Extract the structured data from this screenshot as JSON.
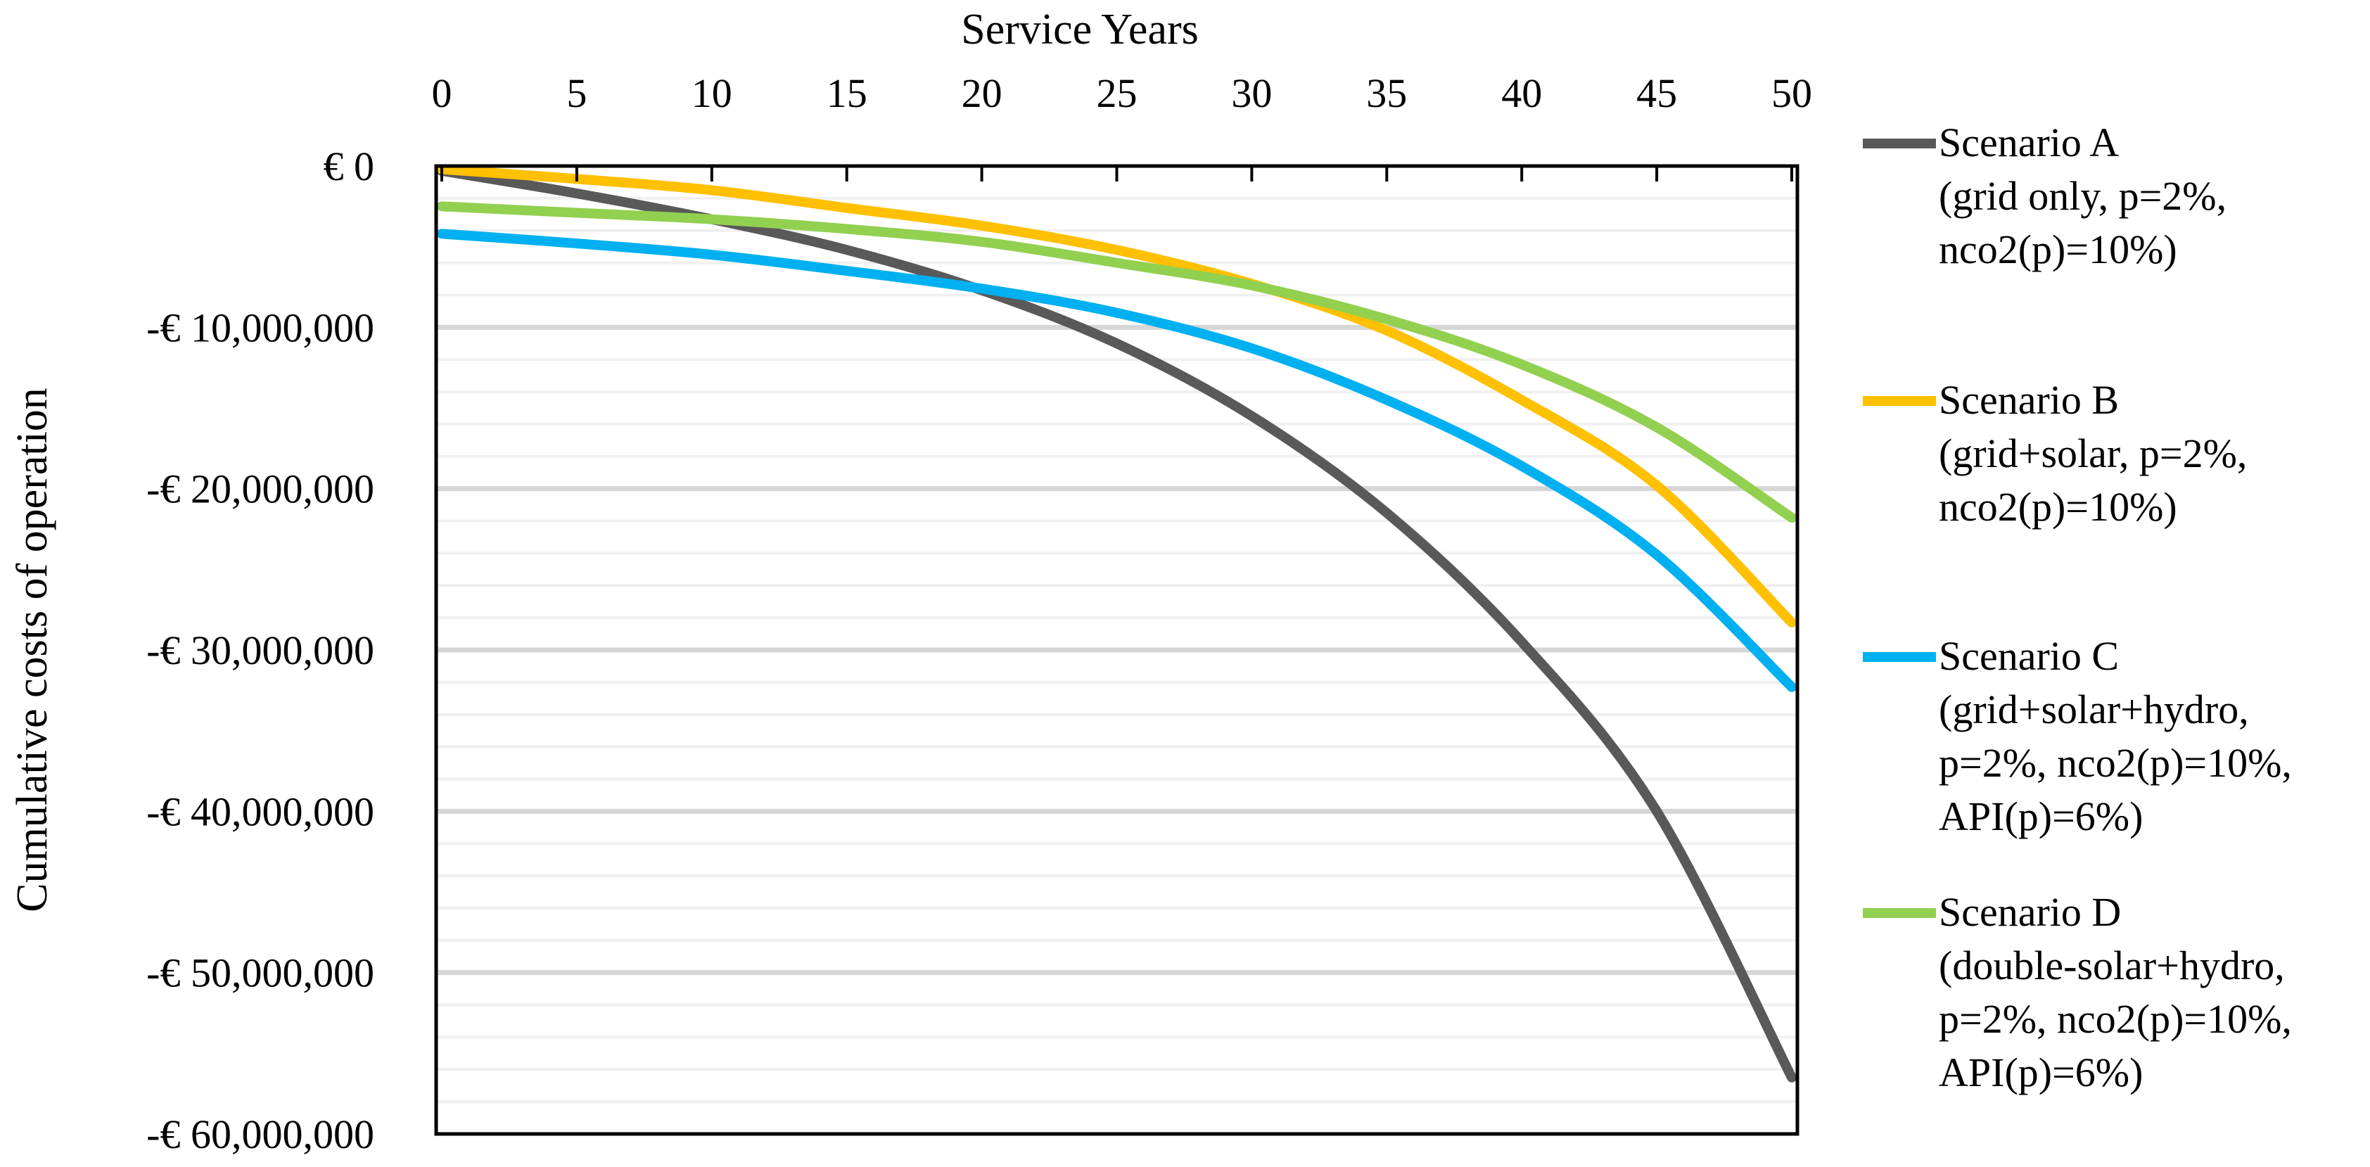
{
  "chart_data": {
    "type": "line",
    "xlabel": "Service Years",
    "ylabel": "Cumulative costs of operation",
    "xlim": [
      0,
      50
    ],
    "ylim": [
      -60000000,
      0
    ],
    "x_ticks": [
      0,
      5,
      10,
      15,
      20,
      25,
      30,
      35,
      40,
      45,
      50
    ],
    "y_ticks": [
      0,
      -10000000,
      -20000000,
      -30000000,
      -40000000,
      -50000000,
      -60000000
    ],
    "y_tick_labels": [
      "€ 0",
      "-€ 10,000,000",
      "-€ 20,000,000",
      "-€ 30,000,000",
      "-€ 40,000,000",
      "-€ 50,000,000",
      "-€ 60,000,000"
    ],
    "minor_gridlines": true,
    "x_axis_position": "top",
    "legend_position": "right",
    "x": [
      0,
      5,
      10,
      15,
      20,
      25,
      30,
      35,
      40,
      45,
      50
    ],
    "series": [
      {
        "name": "Scenario A",
        "legend_lines": [
          "Scenario A",
          "(grid only, p=2%,",
          "nco2(p)=10%)"
        ],
        "color": "#595959",
        "values": [
          -300000,
          -1700000,
          -3300000,
          -5200000,
          -7700000,
          -11000000,
          -15500000,
          -21500000,
          -29500000,
          -40000000,
          -56500000
        ]
      },
      {
        "name": "Scenario B",
        "legend_lines": [
          "Scenario B",
          "(grid+solar, p=2%,",
          "nco2(p)=10%)"
        ],
        "color": "#FFC000",
        "values": [
          -200000,
          -800000,
          -1500000,
          -2600000,
          -3700000,
          -5200000,
          -7300000,
          -10200000,
          -14500000,
          -19800000,
          -28300000
        ]
      },
      {
        "name": "Scenario C",
        "legend_lines": [
          "Scenario C",
          "(grid+solar+hydro,",
          "p=2%, nco2(p)=10%,",
          "API(p)=6%)"
        ],
        "color": "#00B0F0",
        "values": [
          -4200000,
          -4800000,
          -5500000,
          -6500000,
          -7600000,
          -9100000,
          -11300000,
          -14500000,
          -18600000,
          -24100000,
          -32300000
        ]
      },
      {
        "name": "Scenario D",
        "legend_lines": [
          "Scenario D",
          "(double-solar+hydro,",
          "p=2%, nco2(p)=10%,",
          "API(p)=6%)"
        ],
        "color": "#92D050",
        "values": [
          -2500000,
          -2900000,
          -3300000,
          -3900000,
          -4700000,
          -6000000,
          -7400000,
          -9500000,
          -12300000,
          -16200000,
          -21800000
        ]
      }
    ]
  }
}
